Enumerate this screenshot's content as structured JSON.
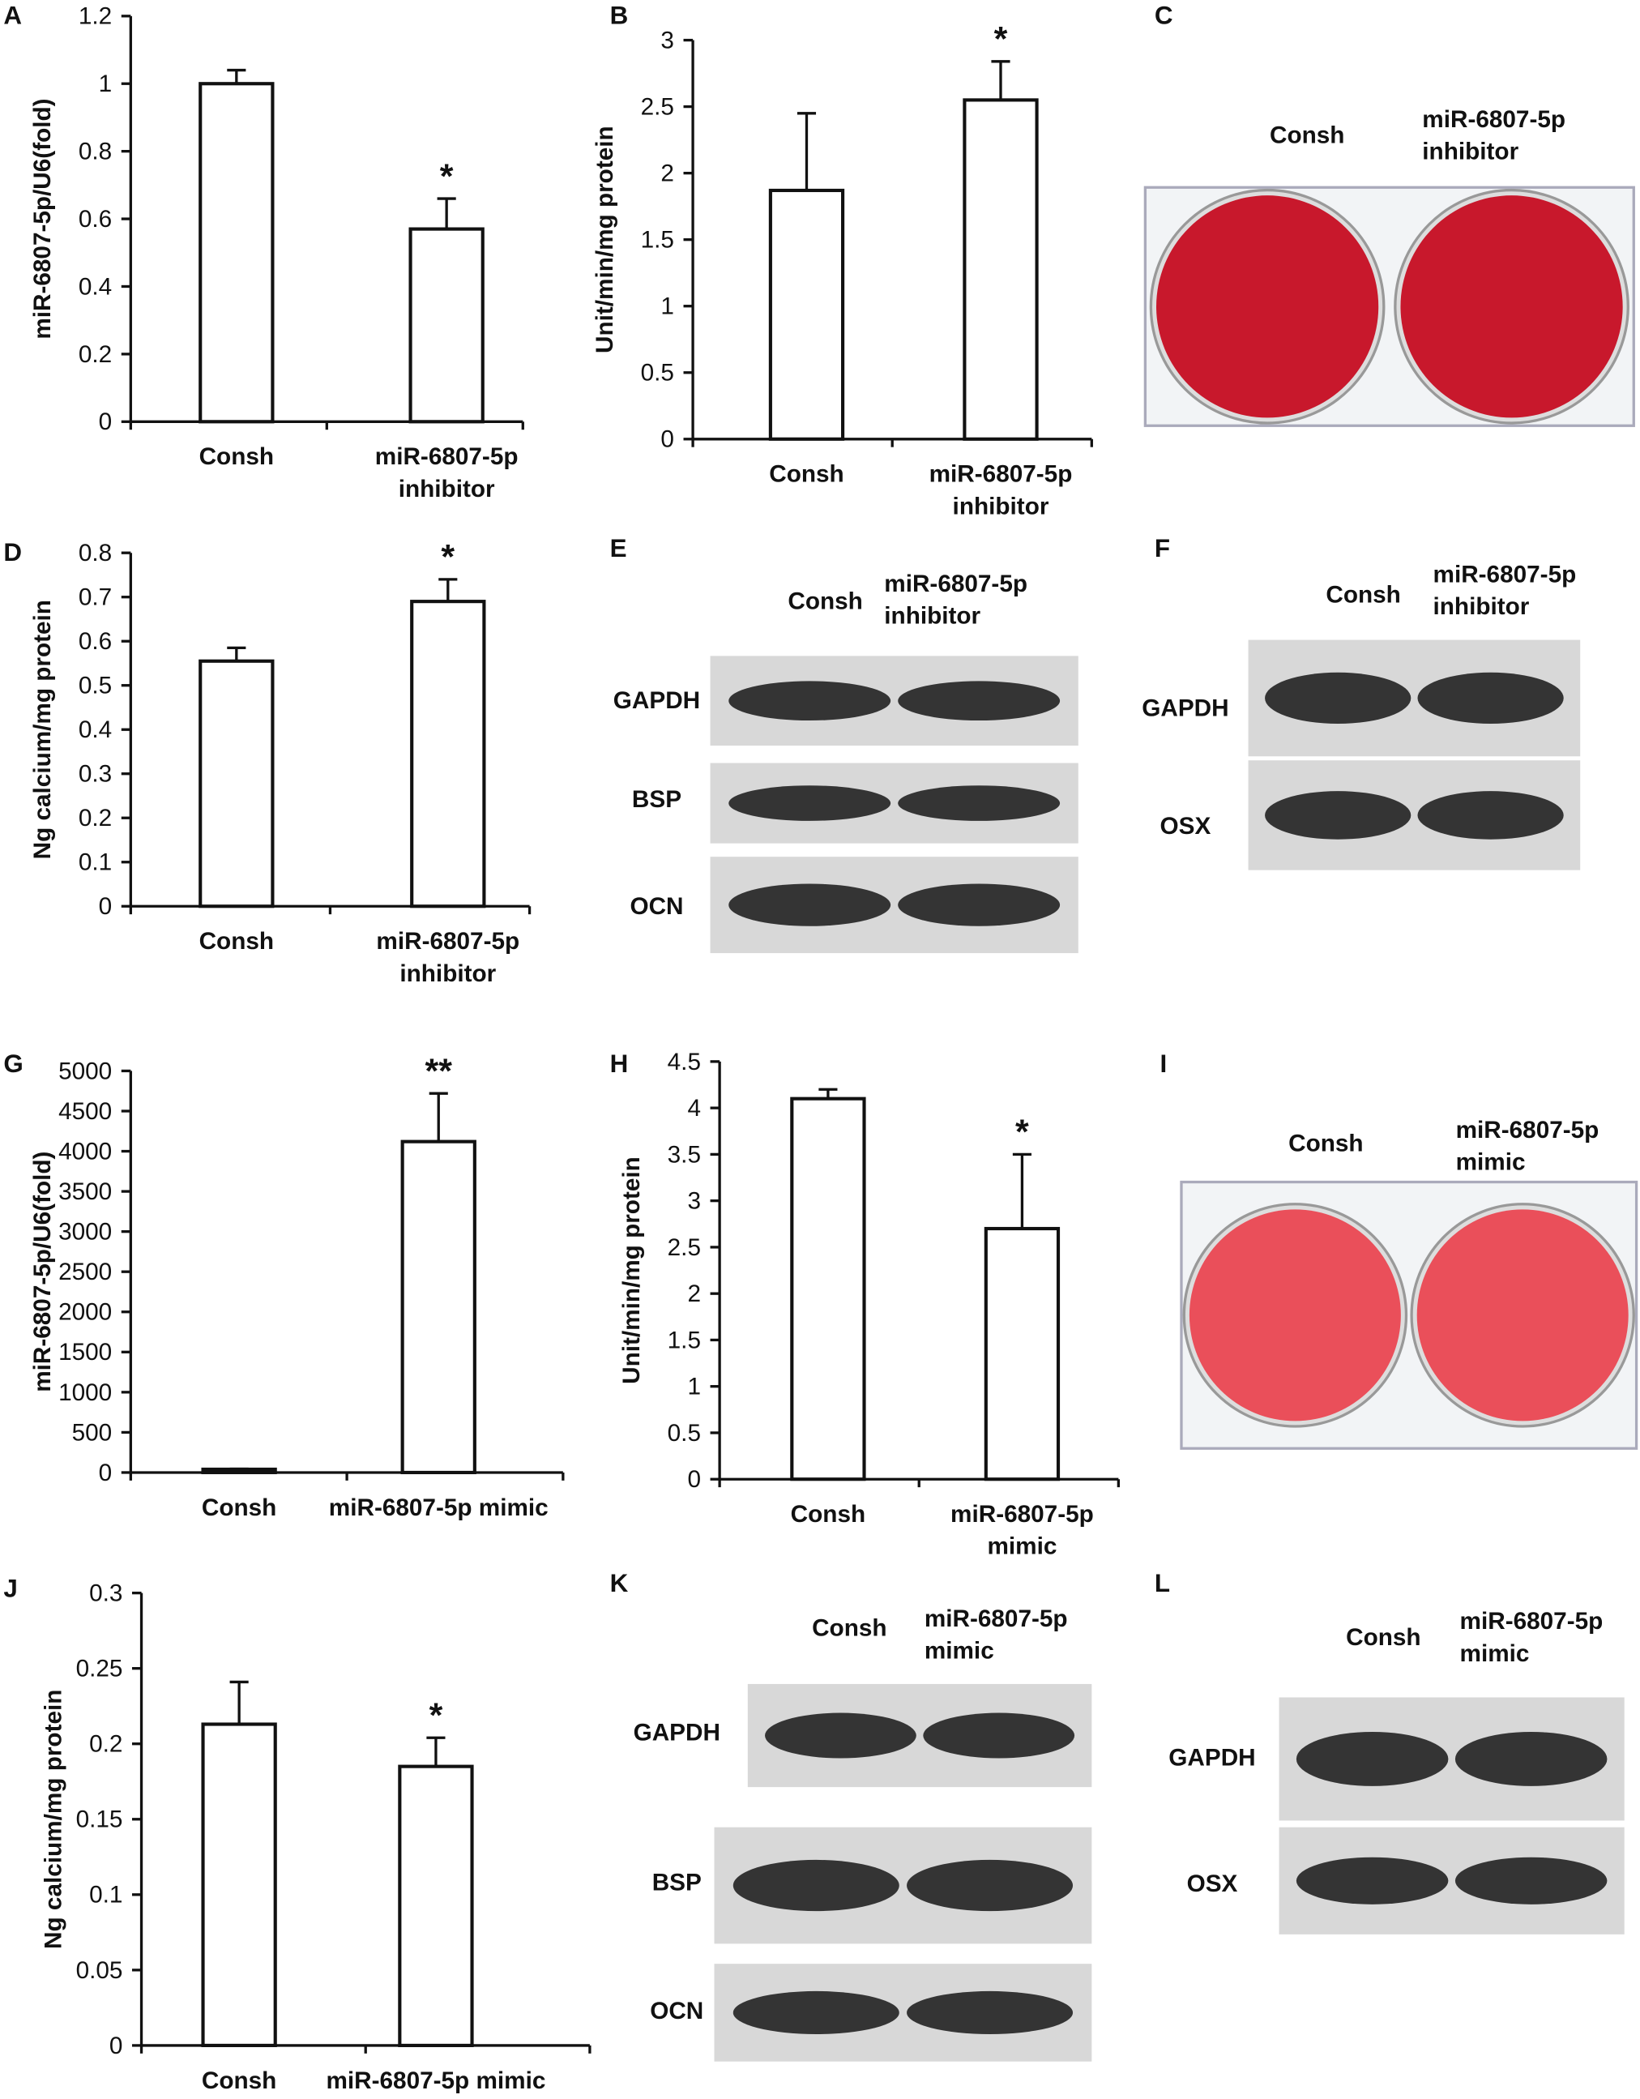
{
  "chart_data": [
    {
      "type": "bar",
      "label": "A",
      "ylabel": "miR-6807-5p/U6(fold)",
      "categories": [
        "Consh",
        "miR-6807-5p\ninhibitor"
      ],
      "values": [
        1.0,
        0.57
      ],
      "errors": [
        0.04,
        0.09
      ],
      "significance": [
        null,
        "*"
      ],
      "color": "#ffffff",
      "ylim": [
        0,
        1.2
      ],
      "yticks": [
        0,
        0.2,
        0.4,
        0.6,
        0.8,
        1,
        1.2
      ]
    },
    {
      "type": "bar",
      "label": "B",
      "ylabel": "Unit/min/mg protein",
      "categories": [
        "Consh",
        "miR-6807-5p\ninhibitor"
      ],
      "values": [
        1.87,
        2.55
      ],
      "errors": [
        0.58,
        0.29
      ],
      "significance": [
        null,
        "*"
      ],
      "color": "#ffffff",
      "ylim": [
        0,
        3
      ],
      "yticks": [
        0,
        0.5,
        1,
        1.5,
        2,
        2.5,
        3
      ]
    },
    {
      "type": "bar",
      "label": "D",
      "ylabel": "Ng calcium/mg protein",
      "categories": [
        "Consh",
        "miR-6807-5p\ninhibitor"
      ],
      "values": [
        0.555,
        0.69
      ],
      "errors": [
        0.03,
        0.05
      ],
      "significance": [
        null,
        "*"
      ],
      "color": "#ffffff",
      "ylim": [
        0,
        0.8
      ],
      "yticks": [
        0,
        0.1,
        0.2,
        0.3,
        0.4,
        0.5,
        0.6,
        0.7,
        0.8
      ]
    },
    {
      "type": "bar",
      "label": "G",
      "ylabel": "miR-6807-5p/U6(fold)",
      "categories": [
        "Consh",
        "miR-6807-5p mimic"
      ],
      "values": [
        40,
        4120
      ],
      "errors": [
        5,
        600
      ],
      "significance": [
        null,
        "**"
      ],
      "color": "#ffffff",
      "ylim": [
        0,
        5000
      ],
      "yticks": [
        0,
        500,
        1000,
        1500,
        2000,
        2500,
        3000,
        3500,
        4000,
        4500,
        5000
      ]
    },
    {
      "type": "bar",
      "label": "H",
      "ylabel": "Unit/min/mg protein",
      "categories": [
        "Consh",
        "miR-6807-5p\nmimic"
      ],
      "values": [
        4.1,
        2.7
      ],
      "errors": [
        0.1,
        0.8
      ],
      "significance": [
        null,
        "*"
      ],
      "color": "#ffffff",
      "ylim": [
        0,
        4.5
      ],
      "yticks": [
        0,
        0.5,
        1,
        1.5,
        2,
        2.5,
        3,
        3.5,
        4,
        4.5
      ]
    },
    {
      "type": "bar",
      "label": "J",
      "ylabel": "Ng calcium/mg protein",
      "categories": [
        "Consh",
        "miR-6807-5p mimic"
      ],
      "values": [
        0.213,
        0.185
      ],
      "errors": [
        0.028,
        0.019
      ],
      "significance": [
        null,
        "*"
      ],
      "color": "#ffffff",
      "ylim": [
        0,
        0.3
      ],
      "yticks": [
        0,
        0.05,
        0.1,
        0.15,
        0.2,
        0.25,
        0.3
      ]
    }
  ],
  "panels": [
    {
      "label": "C",
      "columns": [
        "Consh",
        "miR-6807-5p\ninhibitor"
      ]
    },
    {
      "label": "E",
      "columns": [
        "Consh",
        "miR-6807-5p\ninhibitor"
      ],
      "rows": [
        "GAPDH",
        "BSP",
        "OCN"
      ]
    },
    {
      "label": "F",
      "columns": [
        "Consh",
        "miR-6807-5p\ninhibitor"
      ],
      "rows": [
        "GAPDH",
        "OSX"
      ]
    },
    {
      "label": "I",
      "columns": [
        "Consh",
        "miR-6807-5p\nmimic"
      ]
    },
    {
      "label": "K",
      "columns": [
        "Consh",
        "miR-6807-5p\nmimic"
      ],
      "rows": [
        "GAPDH",
        "BSP",
        "OCN"
      ]
    },
    {
      "label": "L",
      "columns": [
        "Consh",
        "miR-6807-5p\nmimic"
      ],
      "rows": [
        "GAPDH",
        "OSX"
      ]
    }
  ]
}
